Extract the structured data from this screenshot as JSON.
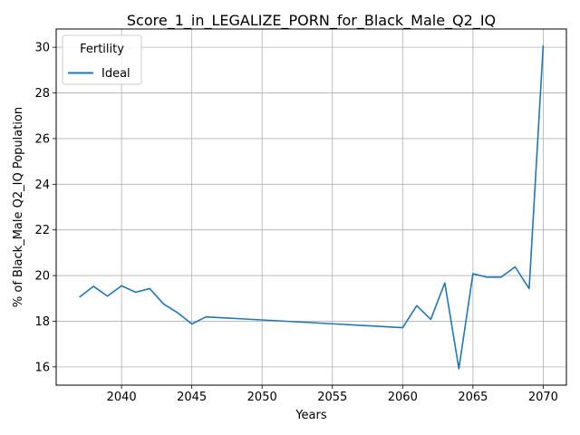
{
  "chart_data": {
    "type": "line",
    "title": "Score_1_in_LEGALIZE_PORN_for_Black_Male_Q2_IQ",
    "xlabel": "Years",
    "ylabel": "% of Black_Male Q2_IQ Population",
    "xlim": [
      2035.35,
      2071.65
    ],
    "ylim": [
      15.2,
      30.8
    ],
    "xticks": [
      2040,
      2045,
      2050,
      2055,
      2060,
      2065,
      2070
    ],
    "yticks": [
      16,
      18,
      20,
      22,
      24,
      26,
      28,
      30
    ],
    "grid": true,
    "legend": {
      "title": "Fertility",
      "placement": "top-left"
    },
    "series": [
      {
        "name": "Ideal",
        "color": "#1f77b4",
        "x": [
          2037,
          2038,
          2039,
          2040,
          2041,
          2042,
          2043,
          2044,
          2045,
          2046,
          2060,
          2061,
          2062,
          2063,
          2064,
          2065,
          2066,
          2067,
          2068,
          2069,
          2070
        ],
        "y": [
          19.05,
          19.53,
          19.1,
          19.55,
          19.27,
          19.43,
          18.75,
          18.37,
          17.88,
          18.19,
          17.72,
          18.68,
          18.08,
          19.68,
          15.92,
          20.08,
          19.93,
          19.93,
          20.38,
          19.43,
          30.08
        ]
      }
    ]
  }
}
